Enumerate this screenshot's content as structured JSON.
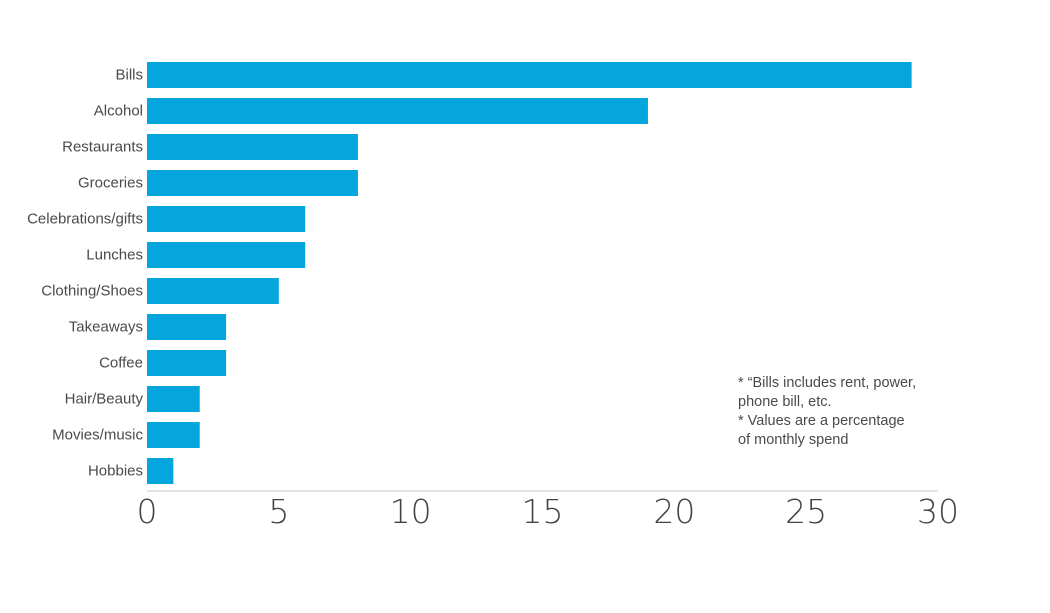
{
  "chart_data": {
    "type": "bar",
    "orientation": "horizontal",
    "categories": [
      "Bills",
      "Alcohol",
      "Restaurants",
      "Groceries",
      "Celebrations/gifts",
      "Lunches",
      "Clothing/Shoes",
      "Takeaways",
      "Coffee",
      "Hair/Beauty",
      "Movies/music",
      "Hobbies"
    ],
    "values": [
      29,
      19,
      8,
      8,
      6,
      6,
      5,
      3,
      3,
      2,
      2,
      1
    ],
    "xlim": [
      0,
      30
    ],
    "xticks": [
      "0",
      "5",
      "10",
      "15",
      "20",
      "25",
      "30"
    ],
    "title": "",
    "xlabel": "",
    "ylabel": "",
    "grid": false,
    "bar_color": "#05a6de",
    "notes": [
      "* “Bills includes rent, power,",
      "phone bill, etc.",
      "* Values are a percentage",
      "of monthly spend"
    ]
  }
}
